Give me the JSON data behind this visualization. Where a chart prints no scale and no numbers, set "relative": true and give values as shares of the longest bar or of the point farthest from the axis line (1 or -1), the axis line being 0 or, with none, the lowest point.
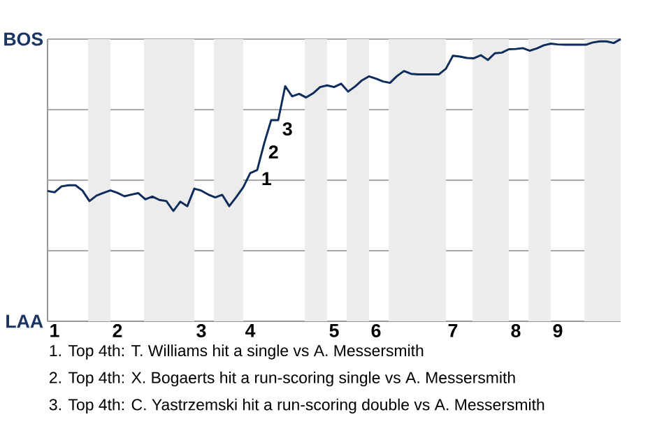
{
  "chart_data": {
    "type": "line",
    "relative": true,
    "categories": [
      null,
      "1",
      null,
      null,
      null,
      null,
      null,
      null,
      null,
      null,
      "2",
      null,
      null,
      null,
      null,
      null,
      null,
      null,
      null,
      null,
      null,
      null,
      "3",
      null,
      null,
      null,
      null,
      null,
      null,
      "4",
      null,
      null,
      null,
      null,
      null,
      null,
      null,
      null,
      null,
      null,
      null,
      "5",
      null,
      null,
      null,
      null,
      null,
      "6",
      null,
      null,
      null,
      null,
      null,
      null,
      null,
      null,
      null,
      null,
      "7",
      null,
      null,
      null,
      null,
      null,
      null,
      null,
      null,
      "8",
      null,
      null,
      null,
      null,
      null,
      "9",
      null,
      null,
      null,
      null,
      null,
      null,
      null,
      null,
      null
    ],
    "grid": "y",
    "series": [
      {
        "color": "#0d2b5b",
        "values": [
          0.462,
          0.457,
          0.478,
          0.482,
          0.482,
          0.463,
          0.426,
          0.445,
          0.455,
          0.464,
          0.455,
          0.443,
          0.449,
          0.454,
          0.432,
          0.442,
          0.43,
          0.426,
          0.391,
          0.424,
          0.408,
          0.47,
          0.463,
          0.449,
          0.439,
          0.448,
          0.408,
          0.44,
          0.475,
          0.525,
          0.536,
          0.631,
          0.713,
          0.713,
          0.833,
          0.797,
          0.806,
          0.793,
          0.808,
          0.83,
          0.836,
          0.83,
          0.842,
          0.814,
          0.832,
          0.854,
          0.868,
          0.86,
          0.85,
          0.845,
          0.869,
          0.887,
          0.877,
          0.875,
          0.875,
          0.875,
          0.875,
          0.895,
          0.941,
          0.938,
          0.933,
          0.932,
          0.943,
          0.926,
          0.95,
          0.952,
          0.964,
          0.965,
          0.968,
          0.959,
          0.967,
          0.978,
          0.984,
          0.981,
          0.98,
          0.98,
          0.98,
          0.98,
          0.988,
          0.992,
          0.992,
          0.986,
          1.0
        ]
      }
    ],
    "annotations": [
      "BOS",
      "LAA",
      "1",
      "2",
      "3",
      "1. Top 4th: T. Williams hit a single vs A. Messersmith",
      "2. Top 4th: X. Bogaerts hit a run-scoring single vs A. Messersmith",
      "3. Top 4th: C. Yastrzemski hit a run-scoring double vs A. Messersmith"
    ]
  }
}
